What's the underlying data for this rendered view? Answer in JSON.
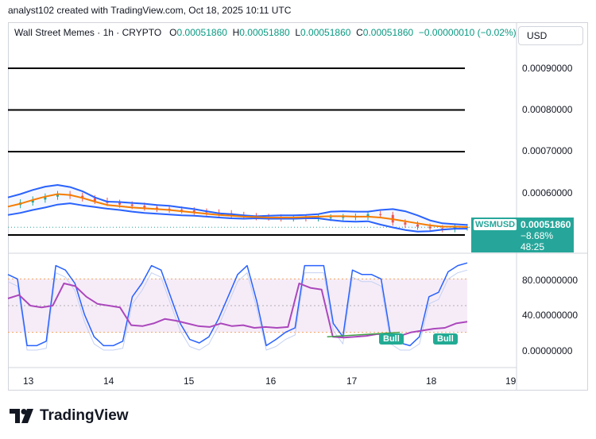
{
  "header": {
    "attribution": "analyst102 created with TradingView.com, Oct 18, 2025 10:11 UTC"
  },
  "legend": {
    "symbol": "Wall Street Memes · 1h · CRYPTO",
    "open_label": "O",
    "open": "0.00051860",
    "high_label": "H",
    "high": "0.00051880",
    "low_label": "L",
    "low": "0.00051860",
    "close_label": "C",
    "close": "0.00051860",
    "change": "−0.00000010 (−0.02%)"
  },
  "currency_button": "USD",
  "price_axis": [
    "0.00090000",
    "0.00080000",
    "0.00070000",
    "0.00060000"
  ],
  "osc_axis": [
    "80.00000000",
    "40.00000000",
    "0.00000000"
  ],
  "time_axis": [
    "13",
    "14",
    "15",
    "16",
    "17",
    "18",
    "19"
  ],
  "price_tag": {
    "symbol": "WSMUSD",
    "price": "0.00051860",
    "change": "−8.68%",
    "countdown": "48:25"
  },
  "signals": [
    "Bull",
    "Bull"
  ],
  "logo_text": "TradingView",
  "colors": {
    "up": "#26a69a",
    "down": "#ef5350",
    "bands": "#2962ff",
    "basis": "#f57c00",
    "stoch_k": "#2962ff",
    "rsi": "#ab47bc",
    "divergence": "#43a047"
  },
  "chart_data": [
    {
      "type": "line",
      "title": "",
      "x_domain_days": [
        13,
        19
      ],
      "y_range": [
        0.00048,
        0.00095
      ],
      "horizontal_lines": [
        0.0009,
        0.0008,
        0.0007,
        0.0005
      ],
      "close_series": [
        0.000572,
        0.000578,
        0.000585,
        0.000592,
        0.000598,
        0.000594,
        0.000588,
        0.000582,
        0.000577,
        0.000573,
        0.00057,
        0.000566,
        0.000563,
        0.000561,
        0.000559,
        0.000556,
        0.000554,
        0.000552,
        0.000548,
        0.000545,
        0.000543,
        0.000542,
        0.00054,
        0.000541,
        0.00054,
        0.000541,
        0.000542,
        0.000543,
        0.000544,
        0.00055,
        0.000548,
        0.00053,
        0.000525,
        0.00052,
        0.000516,
        0.000514,
        0.000518,
        0.000519
      ],
      "bb_upper": [
        0.00059,
        0.000598,
        0.000608,
        0.000616,
        0.00062,
        0.000615,
        0.000605,
        0.00059,
        0.00058,
        0.000579,
        0.000577,
        0.000575,
        0.000572,
        0.00057,
        0.000566,
        0.000562,
        0.000557,
        0.000552,
        0.00055,
        0.000547,
        0.000545,
        0.000546,
        0.000547,
        0.000547,
        0.000548,
        0.00055,
        0.000556,
        0.000557,
        0.000556,
        0.000556,
        0.00056,
        0.000562,
        0.000557,
        0.000547,
        0.000535,
        0.000528,
        0.000526,
        0.000524
      ],
      "bb_basis": [
        0.000568,
        0.000575,
        0.000584,
        0.000592,
        0.000598,
        0.000596,
        0.000589,
        0.00058,
        0.000572,
        0.000569,
        0.000566,
        0.000564,
        0.000562,
        0.00056,
        0.000557,
        0.000554,
        0.000551,
        0.000548,
        0.000546,
        0.000544,
        0.000543,
        0.000542,
        0.000542,
        0.000542,
        0.000543,
        0.000544,
        0.000545,
        0.000545,
        0.000544,
        0.000544,
        0.000542,
        0.000538,
        0.000533,
        0.000528,
        0.000523,
        0.00052,
        0.00052,
        0.000519
      ],
      "bb_lower": [
        0.000548,
        0.000553,
        0.00056,
        0.000566,
        0.000573,
        0.000576,
        0.000571,
        0.000567,
        0.000563,
        0.00056,
        0.000556,
        0.000553,
        0.000551,
        0.000549,
        0.000547,
        0.000546,
        0.000544,
        0.000542,
        0.00054,
        0.000539,
        0.00054,
        0.000539,
        0.000539,
        0.000539,
        0.00054,
        0.00054,
        0.000536,
        0.000533,
        0.000532,
        0.000533,
        0.000525,
        0.000518,
        0.000512,
        0.000508,
        0.000509,
        0.000513,
        0.000515,
        0.000515
      ]
    },
    {
      "type": "line",
      "title": "",
      "y_range": [
        -10,
        110
      ],
      "bands": [
        80,
        50,
        20
      ],
      "stoch_k": [
        85,
        80,
        5,
        5,
        10,
        95,
        90,
        75,
        40,
        15,
        5,
        5,
        10,
        60,
        75,
        95,
        90,
        60,
        30,
        12,
        8,
        15,
        35,
        60,
        85,
        95,
        55,
        5,
        12,
        20,
        25,
        95,
        95,
        95,
        30,
        15,
        90,
        85,
        85,
        80,
        15,
        8,
        5,
        15,
        60,
        65,
        88,
        95,
        98
      ],
      "rsi": [
        58,
        62,
        50,
        48,
        50,
        75,
        72,
        60,
        52,
        50,
        48,
        28,
        27,
        30,
        35,
        33,
        30,
        27,
        26,
        30,
        27,
        28,
        25,
        26,
        25,
        26,
        75,
        70,
        68,
        15,
        14,
        15,
        16,
        18,
        17,
        16,
        20,
        22,
        24,
        25,
        30,
        32
      ],
      "divergence": [
        [
          16.7,
          15
        ],
        [
          17.6,
          20
        ]
      ]
    }
  ]
}
